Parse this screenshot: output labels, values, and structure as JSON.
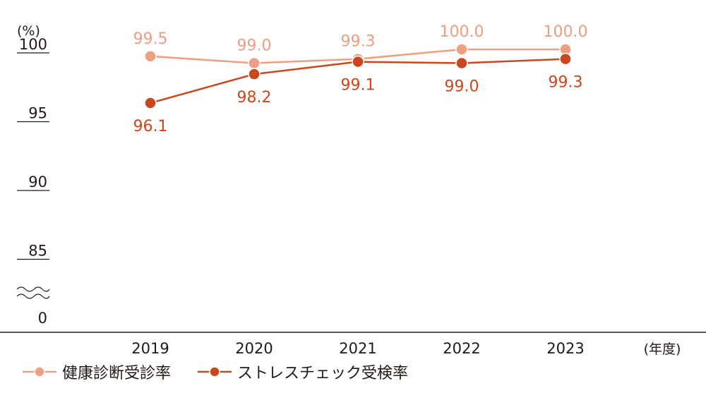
{
  "chart_data": {
    "type": "line",
    "ylabel": "(%)",
    "xlabel": "(年度)",
    "categories": [
      "2019",
      "2020",
      "2021",
      "2022",
      "2023"
    ],
    "y_ticks": [
      "100",
      "95",
      "90",
      "85",
      "0"
    ],
    "y_axis_break": true,
    "ylim": [
      0,
      100
    ],
    "grid": false,
    "legend_position": "bottom-left",
    "series": [
      {
        "name": "健康診断受診率",
        "values": [
          99.5,
          99.0,
          99.3,
          100.0,
          100.0
        ],
        "labels": [
          "99.5",
          "99.0",
          "99.3",
          "100.0",
          "100.0"
        ],
        "color": "#ED9E83",
        "label_position": "above"
      },
      {
        "name": "ストレスチェック受検率",
        "values": [
          96.1,
          98.2,
          99.1,
          99.0,
          99.3
        ],
        "labels": [
          "96.1",
          "98.2",
          "99.1",
          "99.0",
          "99.3"
        ],
        "color": "#C9471C",
        "label_position": "below"
      }
    ]
  }
}
